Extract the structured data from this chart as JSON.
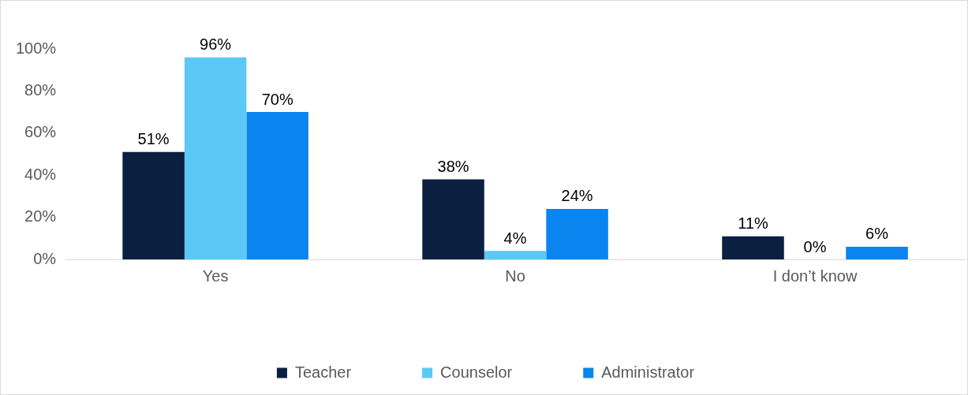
{
  "chart_data": {
    "type": "bar",
    "categories": [
      "Yes",
      "No",
      "I don’t know"
    ],
    "series": [
      {
        "name": "Teacher",
        "color": "#0b1f41",
        "values": [
          51,
          38,
          11
        ],
        "value_labels": [
          "51%",
          "38%",
          "11%"
        ]
      },
      {
        "name": "Counselor",
        "color": "#5bc9f5",
        "values": [
          96,
          4,
          0
        ],
        "value_labels": [
          "96%",
          "4%",
          "0%"
        ]
      },
      {
        "name": "Administrator",
        "color": "#0a84ef",
        "values": [
          70,
          24,
          6
        ],
        "value_labels": [
          "70%",
          "24%",
          "6%"
        ]
      }
    ],
    "ylim": [
      0,
      100
    ],
    "yticks": [
      {
        "value": 0,
        "label": "0%"
      },
      {
        "value": 20,
        "label": "20%"
      },
      {
        "value": 40,
        "label": "40%"
      },
      {
        "value": 60,
        "label": "60%"
      },
      {
        "value": 80,
        "label": "80%"
      },
      {
        "value": 100,
        "label": "100%"
      }
    ],
    "grid": false,
    "legend": "bottom"
  }
}
